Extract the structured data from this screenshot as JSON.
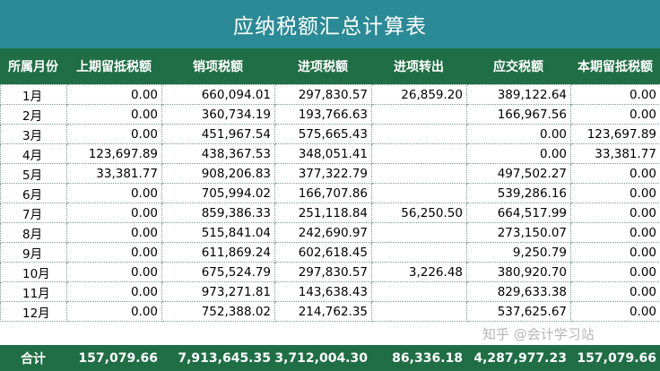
{
  "title": "应纳税额汇总计算表",
  "headers": [
    "所属月份",
    "上期留抵税额",
    "销项税额",
    "进项税额",
    "进项转出",
    "应交税额",
    "本期留抵税额"
  ],
  "rows": [
    [
      "1月",
      "0.00",
      "660,094.01",
      "297,830.57",
      "26,859.20",
      "389,122.64",
      "0.00"
    ],
    [
      "2月",
      "0.00",
      "360,734.19",
      "193,766.63",
      "",
      "166,967.56",
      "0.00"
    ],
    [
      "3月",
      "0.00",
      "451,967.54",
      "575,665.43",
      "",
      "0.00",
      "123,697.89"
    ],
    [
      "4月",
      "123,697.89",
      "438,367.53",
      "348,051.41",
      "",
      "0.00",
      "33,381.77"
    ],
    [
      "5月",
      "33,381.77",
      "908,206.83",
      "377,322.79",
      "",
      "497,502.27",
      "0.00"
    ],
    [
      "6月",
      "0.00",
      "705,994.02",
      "166,707.86",
      "",
      "539,286.16",
      "0.00"
    ],
    [
      "7月",
      "0.00",
      "859,386.33",
      "251,118.84",
      "56,250.50",
      "664,517.99",
      "0.00"
    ],
    [
      "8月",
      "0.00",
      "515,841.04",
      "242,690.97",
      "",
      "273,150.07",
      "0.00"
    ],
    [
      "9月",
      "0.00",
      "611,869.24",
      "602,618.45",
      "",
      "9,250.79",
      "0.00"
    ],
    [
      "10月",
      "0.00",
      "675,524.79",
      "297,830.57",
      "3,226.48",
      "380,920.70",
      "0.00"
    ],
    [
      "11月",
      "0.00",
      "973,271.81",
      "143,638.43",
      "",
      "829,633.38",
      "0.00"
    ],
    [
      "12月",
      "0.00",
      "752,388.02",
      "214,762.35",
      "",
      "537,625.67",
      "0.00"
    ]
  ],
  "totals": [
    "合计",
    "157,079.66",
    "7,913,645.35",
    "3,712,004.30",
    "86,336.18",
    "4,287,977.23",
    "157,079.66"
  ],
  "watermark": "知乎 @会计学习站"
}
